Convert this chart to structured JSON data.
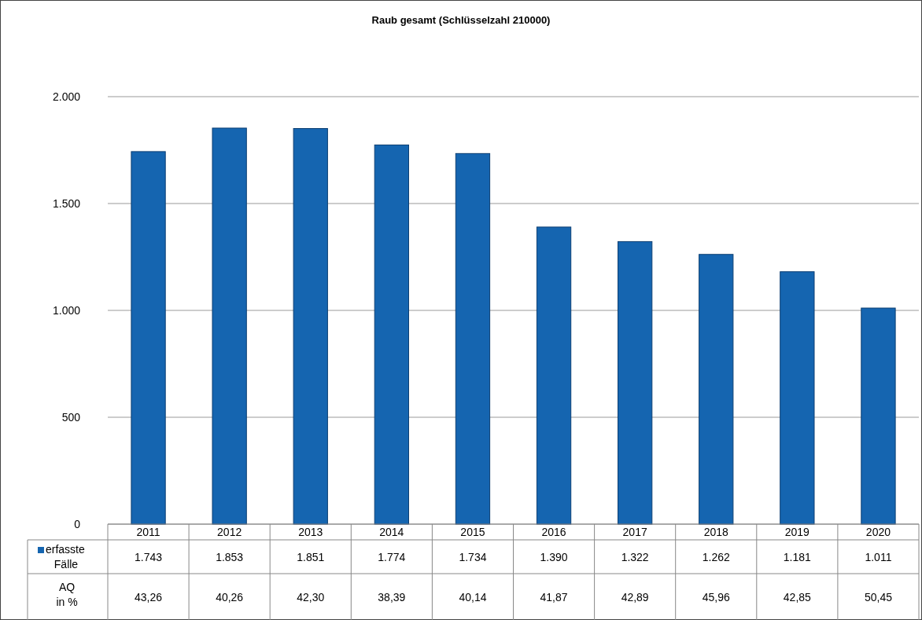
{
  "chart_data": {
    "type": "bar",
    "title": "Raub gesamt (Schlüsselzahl 210000)",
    "categories": [
      "2011",
      "2012",
      "2013",
      "2014",
      "2015",
      "2016",
      "2017",
      "2018",
      "2019",
      "2020"
    ],
    "series": [
      {
        "name": "erfasste Fälle",
        "color": "#1565b0",
        "values": [
          1743,
          1853,
          1851,
          1774,
          1734,
          1390,
          1322,
          1262,
          1181,
          1011
        ],
        "value_labels": [
          "1.743",
          "1.853",
          "1.851",
          "1.774",
          "1.734",
          "1.390",
          "1.322",
          "1.262",
          "1.181",
          "1.011"
        ]
      }
    ],
    "ylim": [
      0,
      2000
    ],
    "yticks": [
      {
        "value": 0,
        "label": "0"
      },
      {
        "value": 500,
        "label": "500"
      },
      {
        "value": 1000,
        "label": "1.000"
      },
      {
        "value": 1500,
        "label": "1.500"
      },
      {
        "value": 2000,
        "label": "2.000"
      }
    ],
    "grid": "y",
    "legend": "bottom",
    "annotations": [
      "AQ in %",
      "43,26",
      "40,26",
      "42,30",
      "38,39",
      "40,14",
      "41,87",
      "42,89",
      "45,96",
      "42,85",
      "50,45"
    ]
  }
}
